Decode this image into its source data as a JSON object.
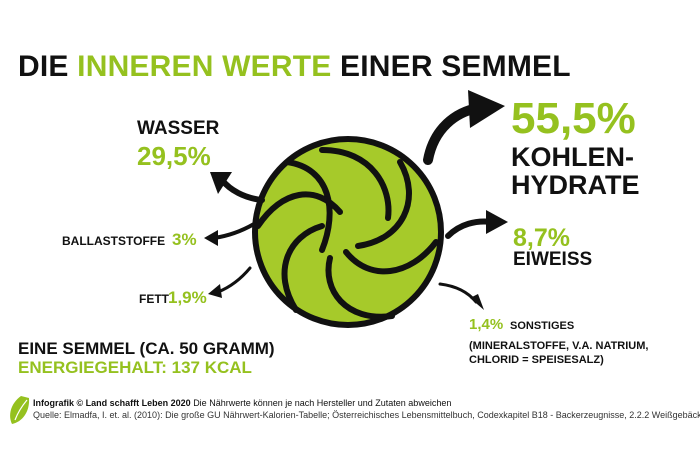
{
  "title": {
    "part1": "DIE",
    "part2": "INNEREN WERTE",
    "part3": "EINER SEMMEL"
  },
  "components": {
    "wasser": {
      "label": "WASSER",
      "value": "29,5%"
    },
    "ballaststoffe": {
      "label": "BALLASTSTOFFE",
      "value": "3%"
    },
    "fett": {
      "label": "FETT",
      "value": "1,9%"
    },
    "kohlenhydrate": {
      "value": "55,5%",
      "label_line1": "KOHLEN-",
      "label_line2": "HYDRATE"
    },
    "eiweiss": {
      "value": "8,7%",
      "label": "EIWEISS"
    },
    "sonstiges": {
      "value": "1,4%",
      "label": "SONSTIGES",
      "note_line1": "(MINERALSTOFFE, V.A. NATRIUM,",
      "note_line2": "CHLORID = SPEISESALZ)"
    }
  },
  "semmel": {
    "line1": "EINE SEMMEL (CA. 50 GRAMM)",
    "line2": "ENERGIEGEHALT: 137 KCAL"
  },
  "footer": {
    "credit_bold": "Infografik © Land schafft Leben 2020",
    "credit_rest": "Die Nährwerte können je nach Hersteller und Zutaten abweichen",
    "source": "Quelle: Elmadfa, I. et. al. (2010): Die große GU Nährwert-Kalorien-Tabelle; Österreichisches Lebensmittelbuch, Codexkapitel B18 - Backerzeugnisse, 2.2.2 Weißgebäck"
  },
  "colors": {
    "accent": "#95c11f",
    "text": "#111111",
    "ball_fill": "#a6ca2a"
  },
  "icons": {
    "semmel": "semmel-ball-icon",
    "logo": "leaf-logo-icon"
  }
}
